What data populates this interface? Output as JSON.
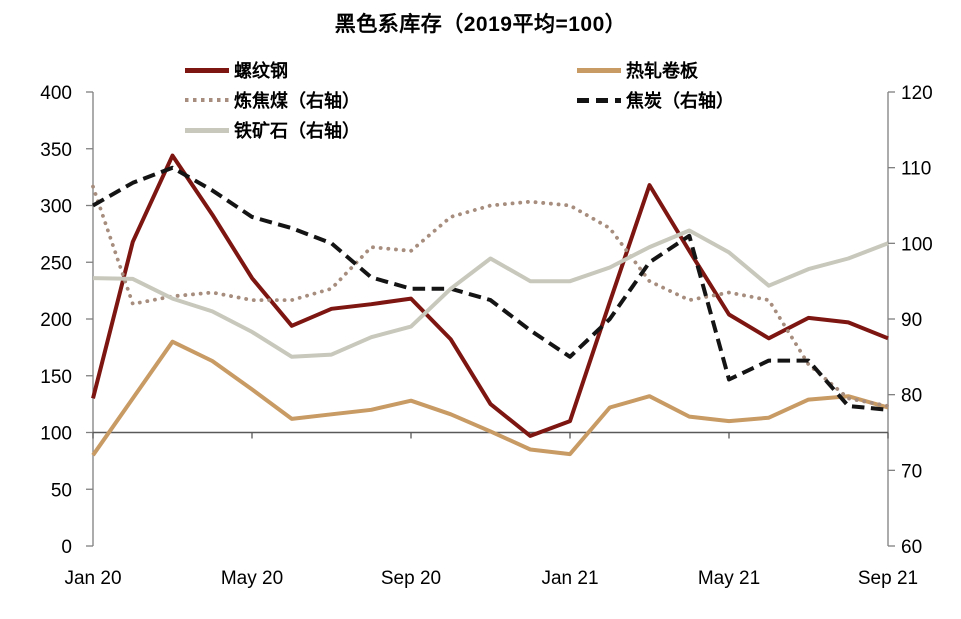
{
  "title": "黑色系库存（2019平均=100）",
  "colors": {
    "axis_line": "#7f7f7f",
    "text": "#000000",
    "background": "#ffffff"
  },
  "chart_data": {
    "type": "line",
    "categories": [
      "Jan 20",
      "Feb 20",
      "Mar 20",
      "Apr 20",
      "May 20",
      "Jun 20",
      "Jul 20",
      "Aug 20",
      "Sep 20",
      "Oct 20",
      "Nov 20",
      "Dec 20",
      "Jan 21",
      "Feb 21",
      "Mar 21",
      "Apr 21",
      "May 21",
      "Jun 21",
      "Jul 21",
      "Aug 21",
      "Sep 21"
    ],
    "x_tick_labels": [
      "Jan 20",
      "May 20",
      "Sep 20",
      "Jan 21",
      "May 21",
      "Sep 21"
    ],
    "left_axis": {
      "min": 0,
      "max": 400,
      "ticks": [
        0,
        50,
        100,
        150,
        200,
        250,
        300,
        350,
        400
      ]
    },
    "right_axis": {
      "min": 60,
      "max": 120,
      "ticks": [
        60,
        70,
        80,
        90,
        100,
        110,
        120
      ]
    },
    "baseline_left_value": 100,
    "grid": "off",
    "legend_position": "top",
    "series": [
      {
        "name": "螺纹钢",
        "axis": "left",
        "style": "solid",
        "color": "#7D1511",
        "values": [
          130,
          268,
          344,
          292,
          236,
          194,
          209,
          213,
          218,
          182,
          125,
          97,
          110,
          215,
          318,
          260,
          204,
          183,
          201,
          197,
          183
        ]
      },
      {
        "name": "热轧卷板",
        "axis": "left",
        "style": "solid",
        "color": "#C89A64",
        "values": [
          80,
          130,
          180,
          163,
          138,
          112,
          116,
          120,
          128,
          116,
          101,
          85,
          81,
          122,
          132,
          114,
          110,
          113,
          129,
          132,
          122
        ]
      },
      {
        "name": "炼焦煤（右轴）",
        "axis": "right",
        "style": "dotted",
        "color": "#A68D7D",
        "values": [
          107.5,
          92,
          93,
          93.5,
          92.5,
          92.5,
          94,
          99.5,
          99,
          103.5,
          105,
          105.5,
          105,
          102,
          95,
          92.5,
          93.5,
          92.5,
          84,
          79.5,
          78.5
        ]
      },
      {
        "name": "焦炭（右轴）",
        "axis": "right",
        "style": "dashed",
        "color": "#141414",
        "values": [
          105,
          108,
          110,
          107,
          103.5,
          102,
          100,
          95.5,
          94,
          94,
          92.5,
          88.5,
          85,
          90,
          97.5,
          101,
          82,
          84.5,
          84.5,
          78.5,
          78
        ]
      },
      {
        "name": "铁矿石（右轴）",
        "axis": "right",
        "style": "solid",
        "color": "#C8C8BC",
        "values": [
          95.4,
          95.3,
          92.7,
          91,
          88.3,
          85,
          85.3,
          87.6,
          89,
          94,
          98,
          95,
          95,
          96.8,
          99.5,
          101.7,
          98.8,
          94.4,
          96.6,
          98,
          100
        ]
      }
    ]
  }
}
